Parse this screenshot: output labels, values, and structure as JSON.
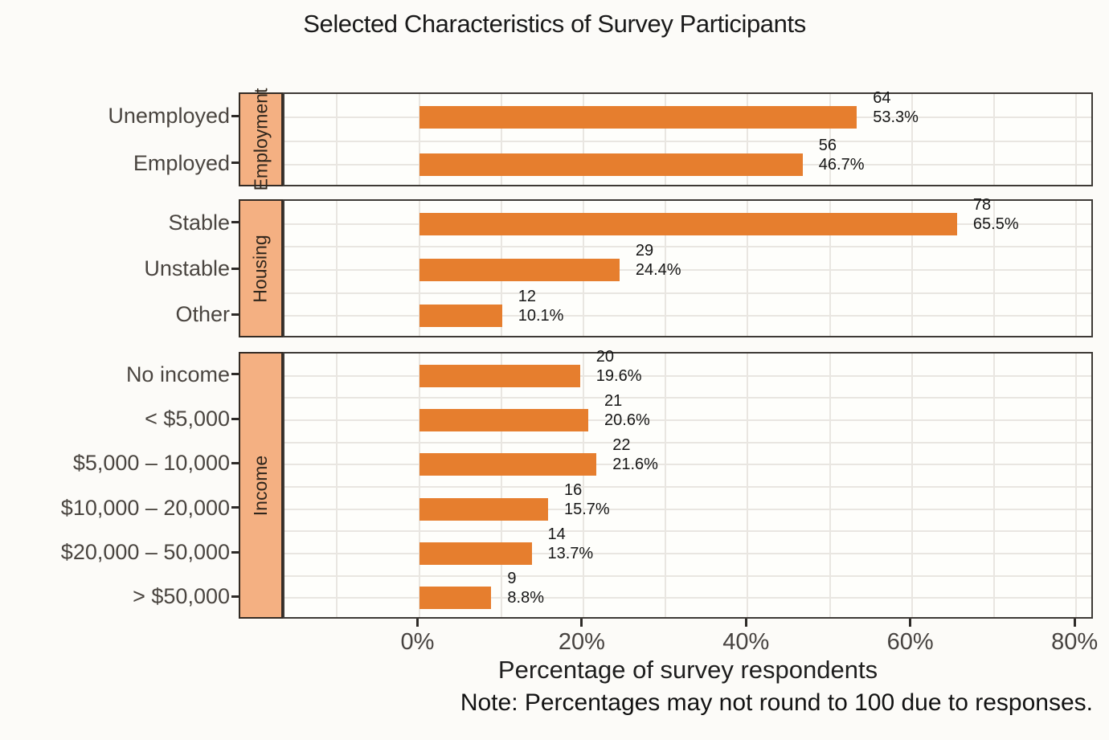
{
  "chart_data": {
    "type": "bar",
    "orientation": "horizontal",
    "title": "Selected Characteristics of Survey Participants",
    "xlabel": "Percentage of survey respondents",
    "note": "Note: Percentages may not round to 100 due to responses.",
    "x_ticks": [
      {
        "value": 0,
        "label": "0%"
      },
      {
        "value": 20,
        "label": "20%"
      },
      {
        "value": 40,
        "label": "40%"
      },
      {
        "value": 60,
        "label": "60%"
      },
      {
        "value": 80,
        "label": "80%"
      }
    ],
    "xlim_pct": [
      -16.4,
      82.3
    ],
    "grid": true,
    "legend": "none",
    "colors": {
      "bar": "#E67E2E",
      "strip_fill": "#F4B082",
      "strip_border": "#332B24",
      "panel_border": "#3E3A36",
      "gridline": "#E9E6E1",
      "background": "#FCFBF8",
      "panel_background": "#FEFEFB"
    },
    "facets": [
      {
        "name": "Employment",
        "categories": [
          "Unemployed",
          "Employed"
        ],
        "counts": [
          64,
          56
        ],
        "percents": [
          53.3,
          46.7
        ],
        "percent_labels": [
          "53.3%",
          "46.7%"
        ]
      },
      {
        "name": "Housing",
        "categories": [
          "Stable",
          "Unstable",
          "Other"
        ],
        "counts": [
          78,
          29,
          12
        ],
        "percents": [
          65.5,
          24.4,
          10.1
        ],
        "percent_labels": [
          "65.5%",
          "24.4%",
          "10.1%"
        ]
      },
      {
        "name": "Income",
        "categories": [
          "No income",
          "< $5,000",
          "$5,000 – 10,000",
          "$10,000 – 20,000",
          "$20,000 – 50,000",
          "> $50,000"
        ],
        "counts": [
          20,
          21,
          22,
          16,
          14,
          9
        ],
        "percents": [
          19.6,
          20.6,
          21.6,
          15.7,
          13.7,
          8.8
        ],
        "percent_labels": [
          "19.6%",
          "20.6%",
          "21.6%",
          "15.7%",
          "13.7%",
          "8.8%"
        ]
      }
    ]
  }
}
